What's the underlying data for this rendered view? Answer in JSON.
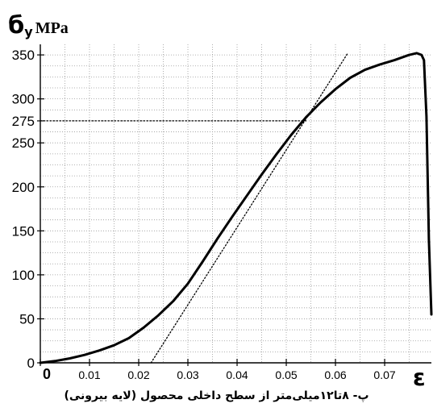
{
  "caption": "پ- ۸تا۱۲میلی‌متر از سطح داخلی محصول (لایه بیرونی)",
  "chart_data": {
    "type": "line",
    "ylabel_symbol": "б",
    "ylabel_subscript": "y",
    "ylabel_unit": "MPa",
    "xlabel": "ε",
    "xlim": [
      0,
      0.0795
    ],
    "ylim": [
      0,
      362
    ],
    "x_ticks": [
      {
        "value": 0,
        "label": "0"
      },
      {
        "value": 0.01,
        "label": "0.01"
      },
      {
        "value": 0.02,
        "label": "0.02"
      },
      {
        "value": 0.03,
        "label": "0.03"
      },
      {
        "value": 0.04,
        "label": "0.04"
      },
      {
        "value": 0.05,
        "label": "0.05"
      },
      {
        "value": 0.06,
        "label": "0.06"
      },
      {
        "value": 0.07,
        "label": "0.07"
      }
    ],
    "y_ticks": [
      {
        "value": 0,
        "label": "0"
      },
      {
        "value": 50,
        "label": "50"
      },
      {
        "value": 100,
        "label": "100"
      },
      {
        "value": 150,
        "label": "150"
      },
      {
        "value": 200,
        "label": "200"
      },
      {
        "value": 250,
        "label": "250"
      },
      {
        "value": 275,
        "label": "275"
      },
      {
        "value": 300,
        "label": "300"
      },
      {
        "value": 350,
        "label": "350"
      }
    ],
    "grid": true,
    "series": [
      {
        "style": "solid",
        "color": "#000000",
        "x": [
          0,
          0.003,
          0.006,
          0.009,
          0.012,
          0.015,
          0.018,
          0.021,
          0.024,
          0.027,
          0.03,
          0.033,
          0.036,
          0.039,
          0.042,
          0.045,
          0.048,
          0.051,
          0.054,
          0.057,
          0.06,
          0.063,
          0.066,
          0.069,
          0.072,
          0.075,
          0.0765,
          0.0775,
          0.078,
          0.0785,
          0.079,
          0.0795
        ],
        "y": [
          0,
          2,
          5,
          9,
          14,
          20,
          28,
          40,
          54,
          70,
          90,
          115,
          141,
          166,
          190,
          214,
          237,
          259,
          279,
          296,
          311,
          324,
          333,
          339,
          344,
          350,
          352,
          350,
          344,
          280,
          140,
          55
        ]
      },
      {
        "style": "dotted",
        "color": "#000000",
        "x": [
          0.0225,
          0.0625
        ],
        "y": [
          0,
          352
        ]
      },
      {
        "style": "dotted",
        "color": "#000000",
        "x": [
          0,
          0.054
        ],
        "y": [
          275,
          275
        ]
      }
    ]
  }
}
